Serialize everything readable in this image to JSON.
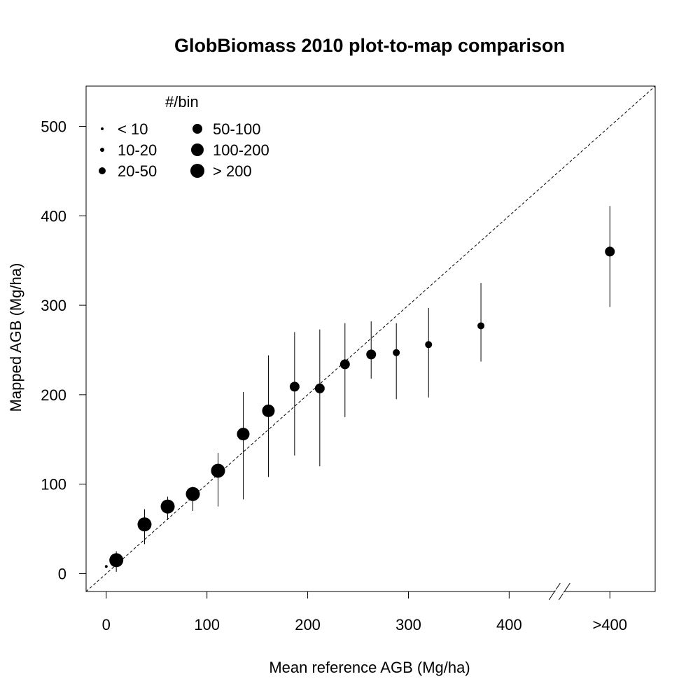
{
  "chart_data": {
    "type": "scatter",
    "title": "GlobBiomass 2010 plot-to-map comparison",
    "xlabel": "Mean reference AGB (Mg/ha)",
    "ylabel": "Mapped AGB (Mg/ha)",
    "xlim": [
      -20,
      545
    ],
    "ylim": [
      -20,
      545
    ],
    "x_ticks": [
      0,
      100,
      200,
      300,
      400,
      500
    ],
    "x_tick_labels": [
      "0",
      "100",
      "200",
      "300",
      "400",
      ">400"
    ],
    "y_ticks": [
      0,
      100,
      200,
      300,
      400,
      500
    ],
    "y_tick_labels": [
      "0",
      "100",
      "200",
      "300",
      "400",
      "500"
    ],
    "axis_break": "between 400 and >400 on x-axis",
    "reference_line": "1:1 dashed",
    "legend": {
      "title": "#/bin",
      "placement": "top-left",
      "entries": [
        {
          "label": "< 10",
          "size_class": 1
        },
        {
          "label": "10-20",
          "size_class": 2
        },
        {
          "label": "20-50",
          "size_class": 3
        },
        {
          "label": "50-100",
          "size_class": 4
        },
        {
          "label": "100-200",
          "size_class": 5
        },
        {
          "label": "> 200",
          "size_class": 6
        }
      ]
    },
    "points": [
      {
        "x": 0,
        "y": 8,
        "lo": null,
        "hi": null,
        "size_class": 1
      },
      {
        "x": 10,
        "y": 15,
        "lo": 2,
        "hi": 25,
        "size_class": 6
      },
      {
        "x": 38,
        "y": 55,
        "lo": 33,
        "hi": 72,
        "size_class": 6
      },
      {
        "x": 61,
        "y": 75,
        "lo": 60,
        "hi": 86,
        "size_class": 6
      },
      {
        "x": 86,
        "y": 89,
        "lo": 70,
        "hi": 97,
        "size_class": 6
      },
      {
        "x": 111,
        "y": 115,
        "lo": 75,
        "hi": 135,
        "size_class": 6
      },
      {
        "x": 136,
        "y": 156,
        "lo": 83,
        "hi": 203,
        "size_class": 5
      },
      {
        "x": 161,
        "y": 182,
        "lo": 108,
        "hi": 244,
        "size_class": 5
      },
      {
        "x": 187,
        "y": 209,
        "lo": 132,
        "hi": 270,
        "size_class": 4
      },
      {
        "x": 212,
        "y": 207,
        "lo": 120,
        "hi": 273,
        "size_class": 4
      },
      {
        "x": 237,
        "y": 234,
        "lo": 175,
        "hi": 280,
        "size_class": 4
      },
      {
        "x": 263,
        "y": 245,
        "lo": 218,
        "hi": 282,
        "size_class": 4
      },
      {
        "x": 288,
        "y": 247,
        "lo": 195,
        "hi": 280,
        "size_class": 3
      },
      {
        "x": 320,
        "y": 256,
        "lo": 197,
        "hi": 297,
        "size_class": 3
      },
      {
        "x": 372,
        "y": 277,
        "lo": 237,
        "hi": 325,
        "size_class": 3
      },
      {
        "x": 500,
        "y": 360,
        "lo": 298,
        "hi": 411,
        "size_class": 4
      }
    ]
  }
}
